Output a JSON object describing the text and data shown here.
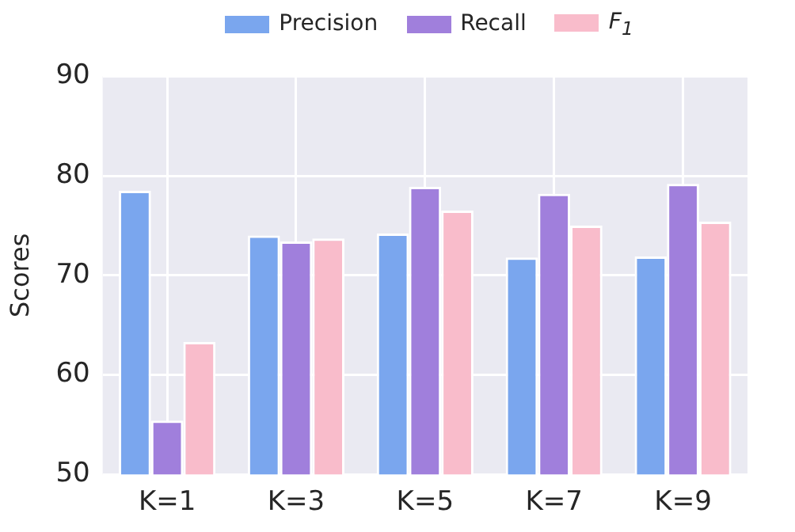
{
  "chart_data": {
    "type": "bar",
    "ylabel": "Scores",
    "categories": [
      "K=1",
      "K=3",
      "K=5",
      "K=7",
      "K=9"
    ],
    "series": [
      {
        "name": "Precision",
        "color": "#7aa6ee",
        "values": [
          78.5,
          74.0,
          74.2,
          71.8,
          71.9
        ]
      },
      {
        "name": "Recall",
        "color": "#a07fdc",
        "values": [
          55.4,
          73.4,
          78.9,
          78.2,
          79.2
        ]
      },
      {
        "name": "F$_{1}$",
        "color": "#f9bccb",
        "values": [
          63.3,
          73.7,
          76.5,
          75.0,
          75.4
        ]
      }
    ],
    "ylim": [
      50,
      90
    ],
    "yticks": [
      50,
      60,
      70,
      80,
      90
    ],
    "grid": true,
    "legend": "top"
  }
}
